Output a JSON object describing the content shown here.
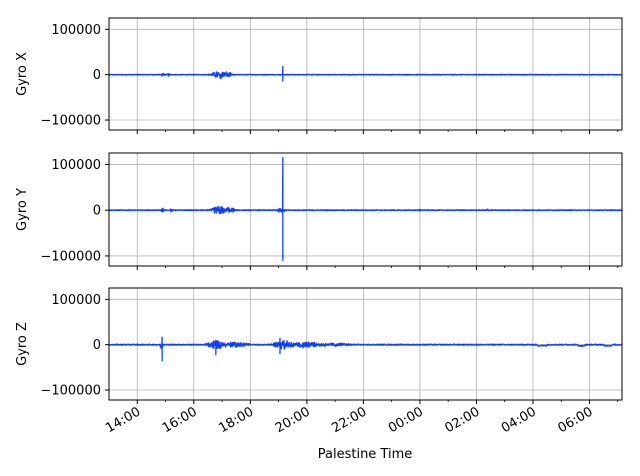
{
  "chart_data": {
    "type": "line",
    "xlabel": "Palestine Time",
    "x_tick_labels": [
      "14:00",
      "16:00",
      "18:00",
      "20:00",
      "22:00",
      "00:00",
      "02:00",
      "04:00",
      "06:00"
    ],
    "x_tick_hours": [
      14,
      16,
      18,
      20,
      22,
      24,
      26,
      28,
      30
    ],
    "x_range_hours": [
      13.0,
      31.15
    ],
    "y_tick_labels": [
      "100000",
      "0",
      "−100000"
    ],
    "y_tick_values": [
      100000,
      0,
      -100000
    ],
    "ylim": [
      -122000,
      125000
    ],
    "grid": true,
    "line_color": "#1040ff",
    "panels": [
      {
        "ylabel": "Gyro X",
        "baseline": 0,
        "noise": 800,
        "bursts": [
          {
            "hour": 14.9,
            "amp": 5000,
            "width": 0.05
          },
          {
            "hour": 15.1,
            "amp": 4000,
            "width": 0.04
          },
          {
            "hour": 16.9,
            "amp": 8000,
            "width": 0.25
          },
          {
            "hour": 17.2,
            "amp": 5000,
            "width": 0.15
          }
        ],
        "spikes": [
          {
            "hour": 19.15,
            "values": [
              18000,
              -14000
            ]
          }
        ]
      },
      {
        "ylabel": "Gyro Y",
        "baseline": 0,
        "noise": 900,
        "bursts": [
          {
            "hour": 14.9,
            "amp": 5000,
            "width": 0.05
          },
          {
            "hour": 15.2,
            "amp": 4000,
            "width": 0.05
          },
          {
            "hour": 16.9,
            "amp": 9000,
            "width": 0.25
          },
          {
            "hour": 17.3,
            "amp": 6000,
            "width": 0.15
          },
          {
            "hour": 19.1,
            "amp": 5000,
            "width": 0.15
          },
          {
            "hour": 24.0,
            "amp": 3000,
            "width": 0.03
          },
          {
            "hour": 26.4,
            "amp": 3000,
            "width": 0.03
          }
        ],
        "spikes": [
          {
            "hour": 19.15,
            "values": [
              115000,
              -110000
            ]
          }
        ]
      },
      {
        "ylabel": "Gyro Z",
        "baseline": 0,
        "noise": 1200,
        "bursts": [
          {
            "hour": 14.85,
            "amp": 8000,
            "width": 0.06
          },
          {
            "hour": 16.8,
            "amp": 10000,
            "width": 0.3
          },
          {
            "hour": 17.5,
            "amp": 6000,
            "width": 0.4
          },
          {
            "hour": 19.2,
            "amp": 10000,
            "width": 0.35
          },
          {
            "hour": 20.0,
            "amp": 6000,
            "width": 0.5
          },
          {
            "hour": 21.0,
            "amp": 3000,
            "width": 0.6
          }
        ],
        "spikes": [
          {
            "hour": 14.88,
            "values": [
              16000,
              -36000
            ]
          },
          {
            "hour": 16.78,
            "values": [
              10000,
              -22000
            ]
          },
          {
            "hour": 19.05,
            "values": [
              14000,
              -20000
            ]
          }
        ],
        "dips": [
          {
            "start": 28.15,
            "end": 28.5,
            "value": -2000
          },
          {
            "start": 29.6,
            "end": 29.85,
            "value": -2500
          },
          {
            "start": 30.5,
            "end": 30.8,
            "value": -2000
          }
        ]
      }
    ]
  }
}
